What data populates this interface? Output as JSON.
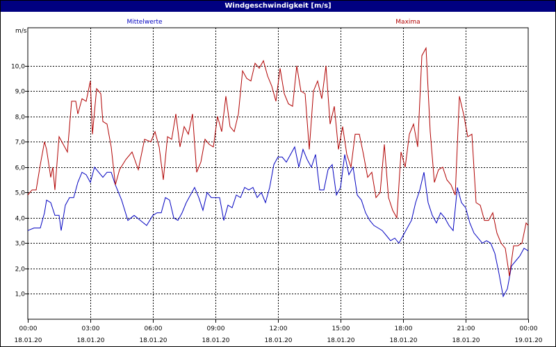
{
  "window": {
    "title": "Windgeschwindigkeit [m/s]"
  },
  "chart_data": {
    "type": "line",
    "title": "Windgeschwindigkeit [m/s]",
    "ylabel": "m/s",
    "ylim": [
      0,
      11.5
    ],
    "xlim": [
      0,
      24
    ],
    "grid": true,
    "yticks": [
      {
        "v": 1,
        "label": "1,0"
      },
      {
        "v": 2,
        "label": "2,0"
      },
      {
        "v": 3,
        "label": "3,0"
      },
      {
        "v": 4,
        "label": "4,0"
      },
      {
        "v": 5,
        "label": "5,0"
      },
      {
        "v": 6,
        "label": "6,0"
      },
      {
        "v": 7,
        "label": "7,0"
      },
      {
        "v": 8,
        "label": "8,0"
      },
      {
        "v": 9,
        "label": "9,0"
      },
      {
        "v": 10,
        "label": "10,0"
      }
    ],
    "xticks": [
      {
        "v": 0,
        "time": "00:00",
        "date": "18.01.20"
      },
      {
        "v": 3,
        "time": "03:00",
        "date": "18.01.20"
      },
      {
        "v": 6,
        "time": "06:00",
        "date": "18.01.20"
      },
      {
        "v": 9,
        "time": "09:00",
        "date": "18.01.20"
      },
      {
        "v": 12,
        "time": "12:00",
        "date": "18.01.20"
      },
      {
        "v": 15,
        "time": "15:00",
        "date": "18.01.20"
      },
      {
        "v": 18,
        "time": "18:00",
        "date": "18.01.20"
      },
      {
        "v": 21,
        "time": "21:00",
        "date": "18.01.20"
      },
      {
        "v": 24,
        "time": "00:00",
        "date": "19.01.20"
      }
    ],
    "series": [
      {
        "name": "Mittelwerte",
        "color": "#0000c0",
        "x": [
          0,
          0.3,
          0.6,
          0.8,
          0.9,
          1.1,
          1.3,
          1.5,
          1.6,
          1.8,
          2,
          2.2,
          2.4,
          2.6,
          2.8,
          3,
          3.2,
          3.4,
          3.6,
          3.8,
          4,
          4.2,
          4.5,
          4.8,
          5.1,
          5.4,
          5.7,
          6,
          6.2,
          6.4,
          6.6,
          6.8,
          7,
          7.2,
          7.4,
          7.6,
          7.8,
          8,
          8.2,
          8.4,
          8.6,
          8.8,
          9,
          9.2,
          9.4,
          9.6,
          9.8,
          10,
          10.2,
          10.4,
          10.6,
          10.8,
          11,
          11.2,
          11.4,
          11.6,
          11.8,
          12,
          12.2,
          12.4,
          12.6,
          12.8,
          13,
          13.2,
          13.4,
          13.6,
          13.8,
          14,
          14.2,
          14.4,
          14.6,
          14.8,
          15,
          15.2,
          15.4,
          15.6,
          15.8,
          16,
          16.2,
          16.4,
          16.6,
          16.8,
          17,
          17.2,
          17.4,
          17.6,
          17.8,
          18,
          18.2,
          18.4,
          18.6,
          18.8,
          19,
          19.2,
          19.4,
          19.6,
          19.8,
          20,
          20.2,
          20.4,
          20.6,
          20.8,
          21,
          21.2,
          21.4,
          21.6,
          21.8,
          22,
          22.2,
          22.4,
          22.6,
          22.8,
          23,
          23.2,
          23.4,
          23.6,
          23.8,
          24
        ],
        "y": [
          3.5,
          3.6,
          3.6,
          4.2,
          4.7,
          4.6,
          4.1,
          4.1,
          3.5,
          4.5,
          4.8,
          4.8,
          5.4,
          5.8,
          5.7,
          5.4,
          6.0,
          5.8,
          5.6,
          5.8,
          5.8,
          5.3,
          4.7,
          3.9,
          4.1,
          3.9,
          3.7,
          4.1,
          4.2,
          4.2,
          4.8,
          4.7,
          4.0,
          3.9,
          4.2,
          4.6,
          4.9,
          5.2,
          4.8,
          4.3,
          5.0,
          4.8,
          4.8,
          4.8,
          3.9,
          4.5,
          4.4,
          4.9,
          4.8,
          5.2,
          5.1,
          5.2,
          4.8,
          5.0,
          4.6,
          5.2,
          6.1,
          6.4,
          6.4,
          6.2,
          6.5,
          6.8,
          6.0,
          6.7,
          6.3,
          6.0,
          6.5,
          5.1,
          5.1,
          5.9,
          6.1,
          4.9,
          5.2,
          6.5,
          5.7,
          6.0,
          4.9,
          4.7,
          4.2,
          3.9,
          3.7,
          3.6,
          3.5,
          3.3,
          3.1,
          3.2,
          3.0,
          3.3,
          3.6,
          3.9,
          4.6,
          5.1,
          5.8,
          4.6,
          4.1,
          3.8,
          4.2,
          4.0,
          3.7,
          3.5,
          5.2,
          4.6,
          4.4,
          3.8,
          3.4,
          3.2,
          3.0,
          3.1,
          3.0,
          2.6,
          1.8,
          0.9,
          1.2,
          2.1,
          2.3,
          2.5,
          2.8,
          2.7
        ],
        "legend_position": "top-left"
      },
      {
        "name": "Maxima",
        "color": "#b00000",
        "x": [
          0,
          0.2,
          0.4,
          0.6,
          0.8,
          0.9,
          1.1,
          1.2,
          1.3,
          1.5,
          1.7,
          1.9,
          2.1,
          2.3,
          2.4,
          2.6,
          2.8,
          3.0,
          3.1,
          3.3,
          3.5,
          3.6,
          3.8,
          4.0,
          4.2,
          4.4,
          4.7,
          5.0,
          5.3,
          5.6,
          5.9,
          6.1,
          6.3,
          6.5,
          6.7,
          6.9,
          7.1,
          7.3,
          7.5,
          7.7,
          7.9,
          8.1,
          8.3,
          8.5,
          8.7,
          8.9,
          9.1,
          9.3,
          9.5,
          9.7,
          9.9,
          10.1,
          10.3,
          10.5,
          10.7,
          10.9,
          11.1,
          11.3,
          11.5,
          11.7,
          11.9,
          12.1,
          12.3,
          12.5,
          12.7,
          12.9,
          13.1,
          13.3,
          13.5,
          13.7,
          13.9,
          14.1,
          14.3,
          14.5,
          14.7,
          14.9,
          15.1,
          15.3,
          15.5,
          15.7,
          15.9,
          16.1,
          16.3,
          16.5,
          16.7,
          16.9,
          17.1,
          17.3,
          17.5,
          17.7,
          17.9,
          18.1,
          18.3,
          18.5,
          18.7,
          18.9,
          19.1,
          19.3,
          19.5,
          19.7,
          19.9,
          20.1,
          20.3,
          20.5,
          20.7,
          20.9,
          21.1,
          21.3,
          21.5,
          21.7,
          21.9,
          22.1,
          22.3,
          22.5,
          22.7,
          22.9,
          23.1,
          23.3,
          23.5,
          23.7,
          23.9,
          24
        ],
        "y": [
          4.9,
          5.1,
          5.1,
          6.1,
          7.0,
          6.7,
          5.6,
          6.0,
          5.1,
          7.2,
          6.9,
          6.6,
          8.6,
          8.6,
          8.1,
          8.7,
          8.6,
          9.4,
          7.3,
          9.1,
          8.9,
          7.8,
          7.7,
          6.8,
          5.3,
          5.9,
          6.3,
          6.6,
          5.9,
          7.1,
          7.0,
          7.4,
          6.8,
          5.5,
          7.2,
          7.1,
          8.1,
          6.8,
          7.6,
          7.3,
          8.1,
          5.8,
          6.2,
          7.1,
          6.9,
          6.8,
          8.0,
          7.4,
          8.8,
          7.6,
          7.4,
          8.1,
          9.8,
          9.5,
          9.4,
          10.1,
          9.9,
          10.2,
          9.6,
          9.2,
          8.6,
          9.9,
          8.9,
          8.5,
          8.4,
          10.0,
          9.0,
          8.9,
          6.7,
          9.0,
          9.4,
          8.7,
          10.0,
          7.7,
          8.4,
          6.7,
          7.6,
          6.5,
          6.0,
          7.3,
          7.3,
          6.5,
          5.6,
          5.8,
          4.8,
          5.0,
          6.9,
          4.8,
          4.3,
          4.0,
          6.6,
          6.0,
          7.3,
          7.7,
          6.8,
          10.4,
          10.7,
          7.4,
          5.4,
          5.9,
          6.0,
          5.5,
          5.3,
          4.9,
          8.8,
          8.1,
          7.2,
          7.3,
          4.6,
          4.5,
          3.9,
          3.9,
          4.2,
          3.4,
          3.0,
          2.8,
          1.7,
          2.9,
          2.9,
          3.0,
          3.8,
          3.7
        ],
        "legend_position": "top-right"
      }
    ]
  }
}
